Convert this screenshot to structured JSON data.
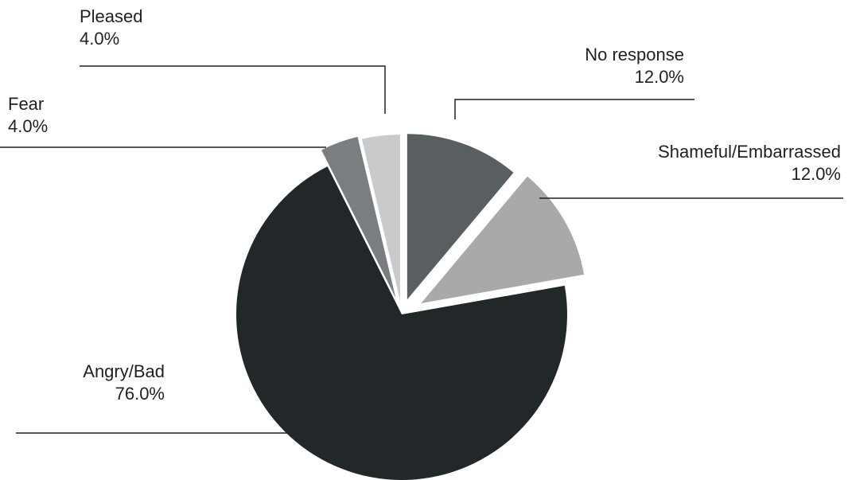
{
  "chart_data": {
    "type": "pie",
    "title": "",
    "slices": [
      {
        "label": "No response",
        "value": 12.0,
        "value_label": "12.0%",
        "color": "#595e60"
      },
      {
        "label": "Shameful/Embarrassed",
        "value": 12.0,
        "value_label": "12.0%",
        "color": "#a7a9ab"
      },
      {
        "label": "Angry/Bad",
        "value": 76.0,
        "value_label": "76.0%",
        "color": "#222829"
      },
      {
        "label": "Fear",
        "value": 4.0,
        "value_label": "4.0%",
        "color": "#7b7e80"
      },
      {
        "label": "Pleased",
        "value": 4.0,
        "value_label": "4.0%",
        "color": "#c9cacb"
      }
    ],
    "legend": "none",
    "label_style": "leader lines with name and percentage"
  }
}
